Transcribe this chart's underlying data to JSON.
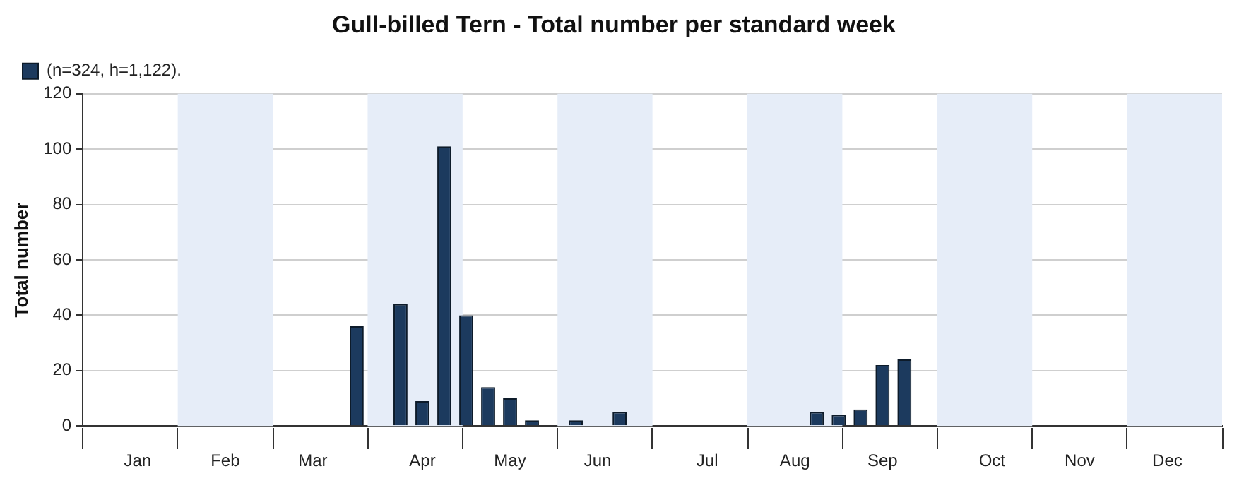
{
  "chart_data": {
    "type": "bar",
    "title": "Gull-billed Tern - Total number per standard week",
    "ylabel": "Total number",
    "categories": [
      null,
      null,
      "Jan",
      null,
      null,
      null,
      "Feb",
      null,
      null,
      null,
      "Mar",
      null,
      null,
      null,
      null,
      "Apr",
      null,
      null,
      null,
      "May",
      null,
      null,
      null,
      "Jun",
      null,
      null,
      null,
      null,
      "Jul",
      null,
      null,
      null,
      "Aug",
      null,
      null,
      null,
      "Sep",
      null,
      null,
      null,
      null,
      "Oct",
      null,
      null,
      null,
      "Nov",
      null,
      null,
      null,
      "Dec",
      null,
      null
    ],
    "series": [
      {
        "name": "(n=324, h=1,122).",
        "color": "#1c3a5e",
        "values": [
          null,
          null,
          null,
          null,
          null,
          null,
          null,
          null,
          null,
          null,
          null,
          null,
          36,
          null,
          44,
          9,
          101,
          40,
          14,
          10,
          2,
          null,
          2,
          null,
          5,
          null,
          null,
          null,
          null,
          null,
          null,
          null,
          null,
          5,
          4,
          6,
          22,
          24,
          null,
          null,
          null,
          null,
          null,
          null,
          null,
          null,
          null,
          null,
          null,
          null,
          null,
          null
        ]
      }
    ],
    "ylim": [
      0,
      120
    ],
    "yticks": [
      0,
      20,
      40,
      60,
      80,
      100,
      120
    ],
    "grid": "y",
    "legend": "top left"
  }
}
